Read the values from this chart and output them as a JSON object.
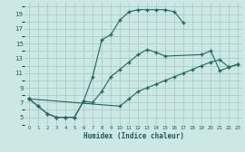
{
  "bg_color": "#cce8e4",
  "grid_color": "#aaccc8",
  "line_color": "#1a6b60",
  "xlabel": "Humidex (Indice chaleur)",
  "xlim": [
    -0.5,
    23.5
  ],
  "ylim": [
    4.0,
    20.5
  ],
  "xtick_vals": [
    0,
    1,
    2,
    3,
    4,
    5,
    6,
    7,
    8,
    9,
    10,
    11,
    12,
    13,
    14,
    15,
    16,
    17,
    18,
    19,
    20,
    21,
    22,
    23
  ],
  "ytick_vals": [
    5,
    7,
    9,
    11,
    13,
    15,
    17,
    19
  ],
  "line1_x": [
    0,
    1,
    2,
    3,
    4,
    5,
    6,
    7,
    8,
    9,
    10,
    11,
    12,
    13,
    14,
    15,
    16,
    17
  ],
  "line1_y": [
    7.5,
    6.5,
    5.5,
    5.0,
    5.0,
    5.0,
    7.2,
    10.5,
    15.5,
    16.2,
    18.2,
    19.3,
    19.6,
    19.6,
    19.6,
    19.6,
    19.3,
    17.8
  ],
  "line2_x": [
    0,
    1,
    2,
    3,
    4,
    5,
    6,
    7,
    8,
    9,
    10,
    11,
    12,
    13,
    14,
    15,
    19,
    20,
    21,
    22,
    23
  ],
  "line2_y": [
    7.5,
    6.5,
    5.5,
    5.0,
    5.0,
    5.0,
    7.2,
    7.0,
    8.5,
    10.5,
    11.5,
    12.5,
    13.5,
    14.2,
    13.8,
    13.3,
    13.5,
    14.0,
    11.3,
    11.8,
    12.2
  ],
  "line3_x": [
    0,
    10,
    11,
    12,
    13,
    14,
    15,
    16,
    17,
    18,
    19,
    20,
    21,
    22,
    23
  ],
  "line3_y": [
    7.5,
    6.5,
    7.5,
    8.5,
    9.0,
    9.5,
    10.0,
    10.5,
    11.0,
    11.5,
    12.0,
    12.5,
    12.8,
    11.8,
    12.2
  ]
}
